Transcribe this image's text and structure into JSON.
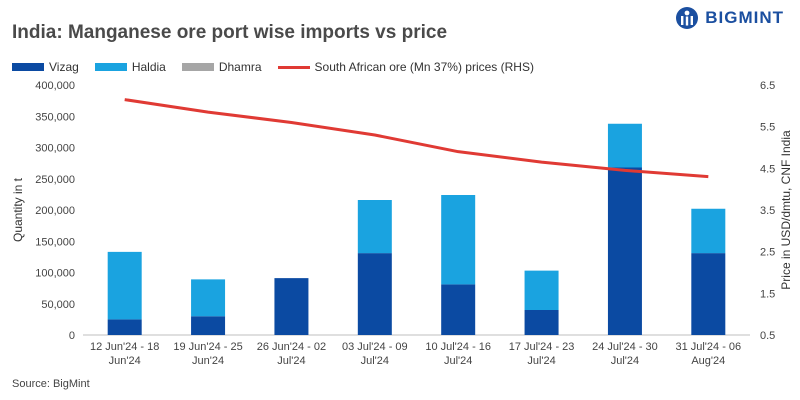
{
  "header": {
    "title": "India: Manganese ore port wise imports vs price",
    "brand": "BIGMINT"
  },
  "source": "Source: BigMint",
  "colors": {
    "vizag": "#0b4aa2",
    "haldia": "#1aa3e0",
    "dhamra": "#a6a6a6",
    "price": "#e03a34",
    "brand": "#1b4fa0"
  },
  "icons": {
    "brand_logo": "bigmint-logo-icon"
  },
  "chart_data": {
    "type": "bar",
    "stacked": true,
    "categories": [
      [
        "12 Jun'24 - 18",
        "Jun'24"
      ],
      [
        "19 Jun'24 - 25",
        "Jun'24"
      ],
      [
        "26 Jun'24 - 02",
        "Jul'24"
      ],
      [
        "03 Jul'24 - 09",
        "Jul'24"
      ],
      [
        "10 Jul'24 - 16",
        "Jul'24"
      ],
      [
        "17 Jul'24 - 23",
        "Jul'24"
      ],
      [
        "24 Jul'24 - 30",
        "Jul'24"
      ],
      [
        "31 Jul'24 - 06",
        "Aug'24"
      ]
    ],
    "series": [
      {
        "name": "Vizag",
        "axis": "left",
        "values": [
          25000,
          30000,
          91000,
          131000,
          81000,
          40000,
          268000,
          131000
        ]
      },
      {
        "name": "Haldia",
        "axis": "left",
        "values": [
          108000,
          59000,
          0,
          85000,
          143000,
          63000,
          70000,
          71000
        ]
      },
      {
        "name": "Dhamra",
        "axis": "left",
        "values": [
          0,
          0,
          0,
          0,
          0,
          0,
          0,
          0
        ]
      },
      {
        "name": "South African ore (Mn 37%) prices (RHS)",
        "axis": "right",
        "type": "line",
        "values": [
          6.15,
          5.85,
          5.6,
          5.3,
          4.9,
          4.65,
          4.45,
          4.3
        ]
      }
    ],
    "ylabel": "Quantity in t",
    "y2label": "Price in USD/dmtu, CNF India",
    "ylim": [
      0,
      400000
    ],
    "yticks": [
      "0",
      "50,000",
      "100,000",
      "150,000",
      "200,000",
      "250,000",
      "300,000",
      "350,000",
      "400,000"
    ],
    "y2lim": [
      0.5,
      6.5
    ],
    "y2ticks": [
      "0.5",
      "1.5",
      "2.5",
      "3.5",
      "4.5",
      "5.5",
      "6.5"
    ],
    "grid": false,
    "legend": "top-left"
  }
}
